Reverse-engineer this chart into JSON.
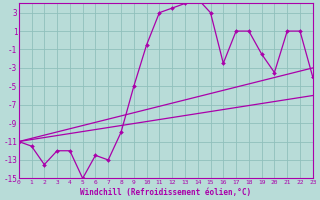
{
  "xlabel": "Windchill (Refroidissement éolien,°C)",
  "bg_color": "#b8dcd8",
  "grid_color": "#90c0bc",
  "line_color": "#aa00aa",
  "xlim": [
    0,
    23
  ],
  "ylim": [
    -15,
    4
  ],
  "yticks": [
    3,
    1,
    -1,
    -3,
    -5,
    -7,
    -9,
    -11,
    -13,
    -15
  ],
  "xticks": [
    0,
    1,
    2,
    3,
    4,
    5,
    6,
    7,
    8,
    9,
    10,
    11,
    12,
    13,
    14,
    15,
    16,
    17,
    18,
    19,
    20,
    21,
    22,
    23
  ],
  "series": [
    {
      "x": [
        0,
        23
      ],
      "y": [
        -11,
        -6
      ],
      "marker": false,
      "lw": 0.9
    },
    {
      "x": [
        0,
        23
      ],
      "y": [
        -11,
        -3
      ],
      "marker": false,
      "lw": 0.9
    },
    {
      "x": [
        0,
        1,
        2,
        3,
        4,
        5,
        6,
        7,
        8,
        9,
        10,
        11,
        12,
        13,
        14,
        15,
        16,
        17,
        18,
        19,
        20,
        21,
        22,
        23
      ],
      "y": [
        -11,
        -11.5,
        -13.5,
        -12,
        -12,
        -15,
        -12.5,
        -13,
        -10,
        -5,
        -0.5,
        3,
        3.5,
        4,
        4.5,
        3,
        -2.5,
        1,
        1,
        -1.5,
        -3.5,
        1,
        1,
        -4
      ],
      "marker": true,
      "lw": 0.9
    }
  ]
}
